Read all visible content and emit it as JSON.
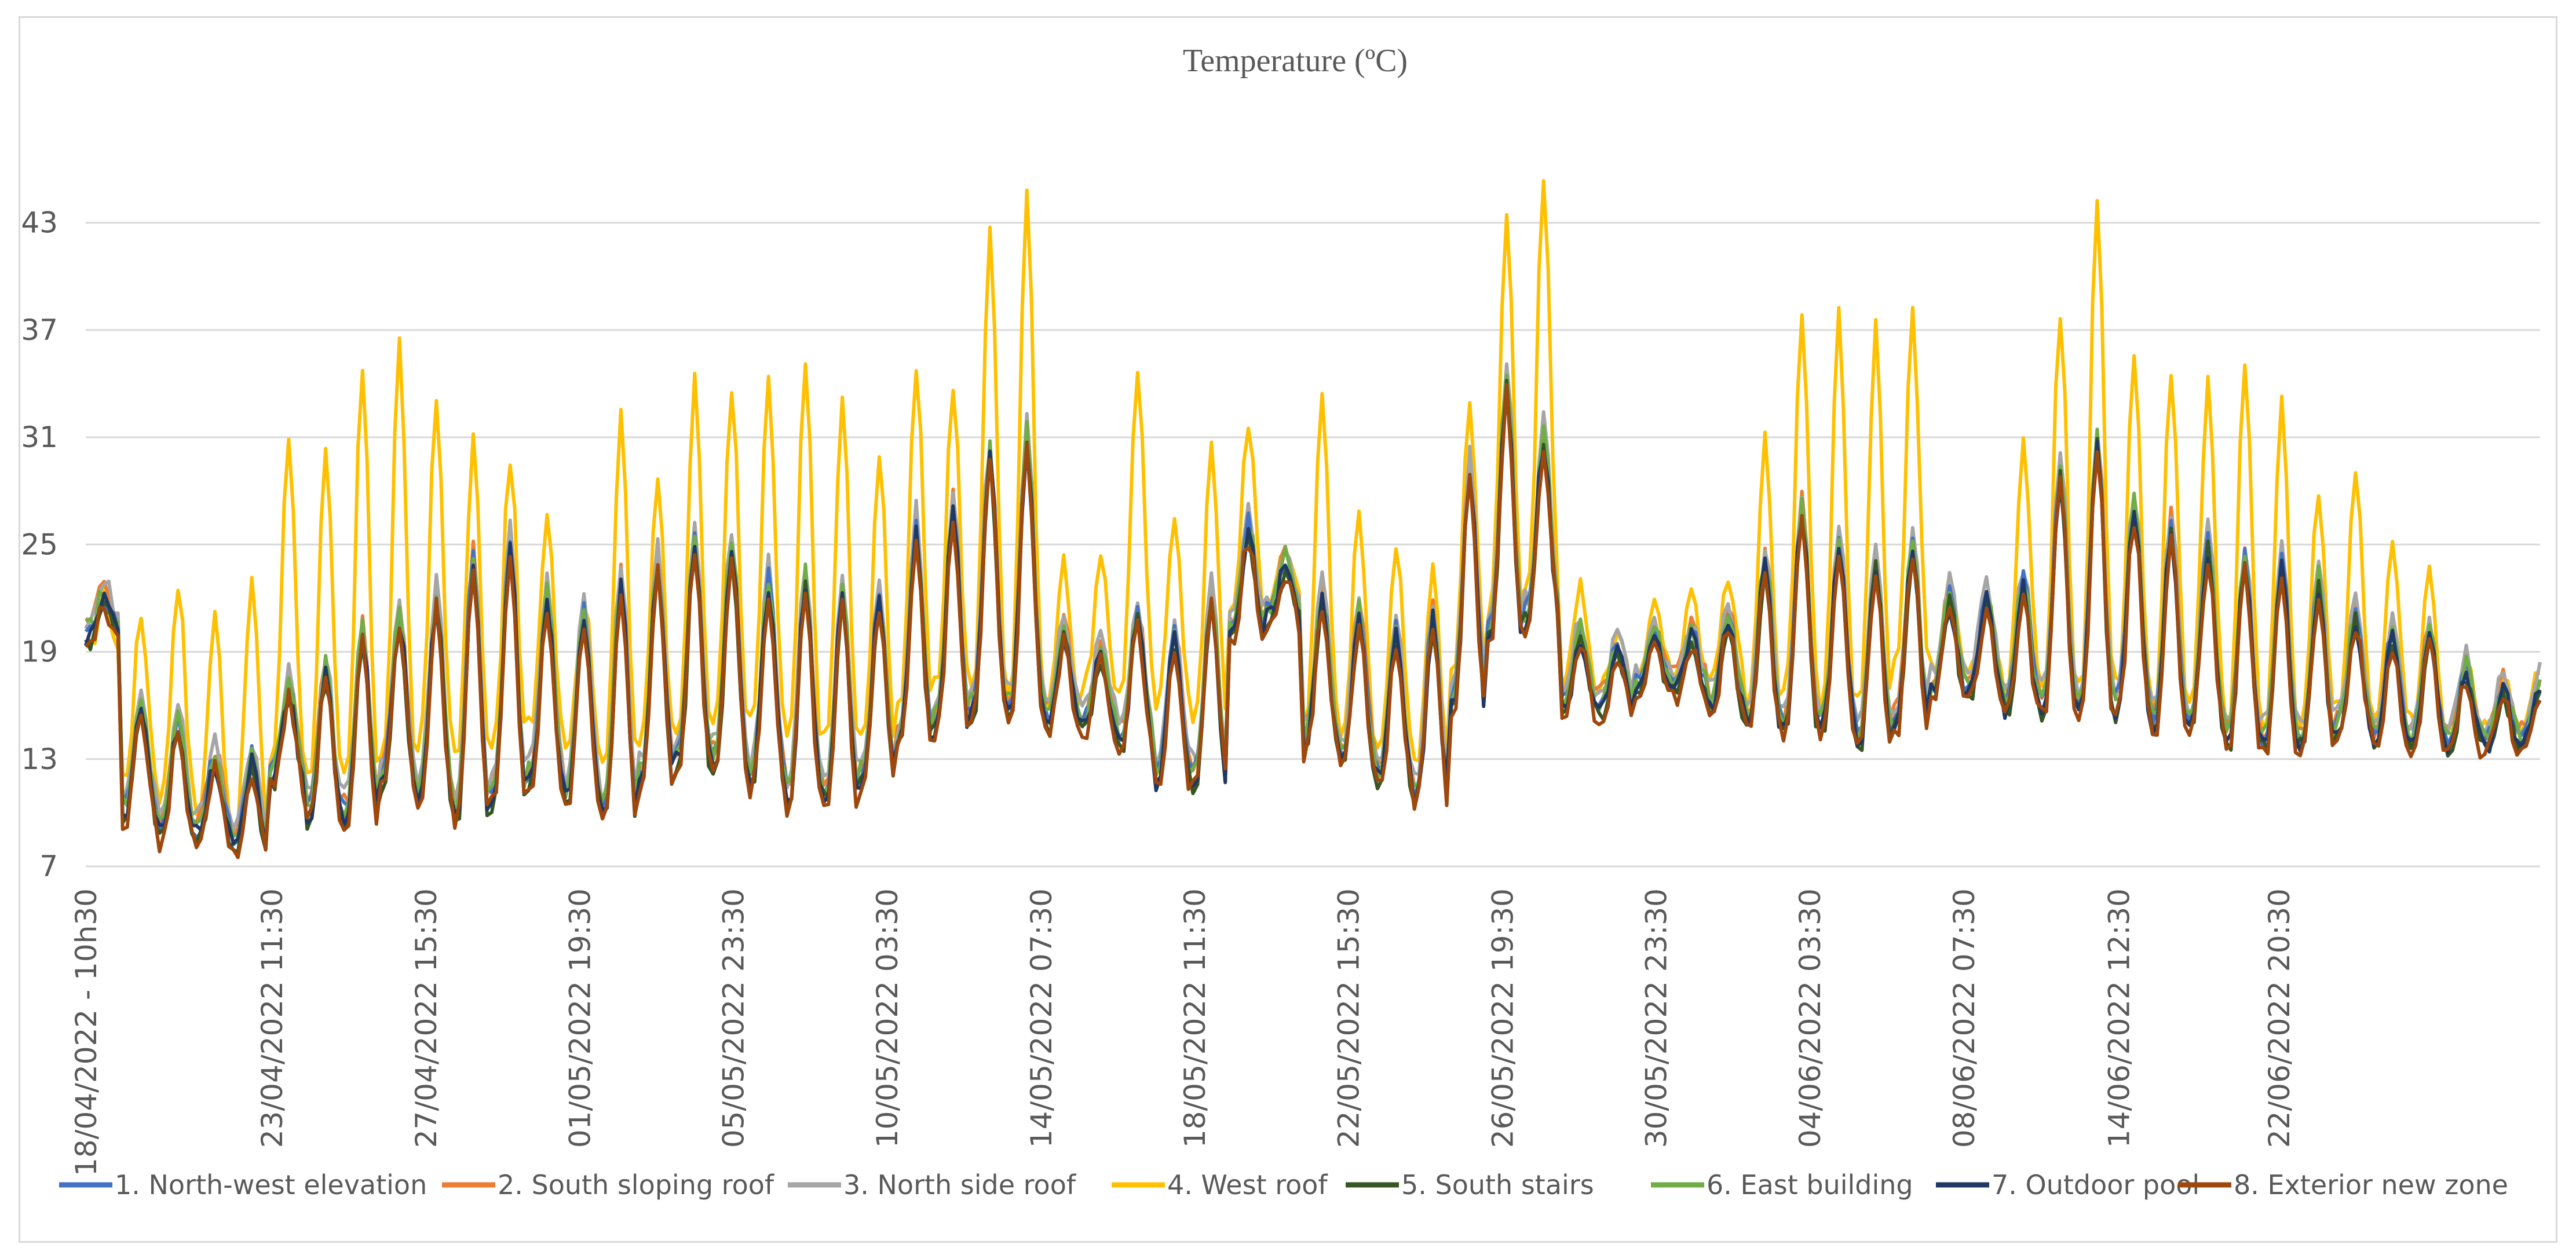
{
  "chart_data": {
    "type": "line",
    "title": "Temperature (ºC)",
    "xlabel": "",
    "ylabel": "",
    "ylim": [
      7,
      46
    ],
    "y_ticks": [
      7,
      13,
      19,
      25,
      31,
      37,
      43
    ],
    "grid": "horizontal",
    "legend_position": "bottom",
    "x_range_days": [
      0,
      66.5
    ],
    "x_ticks": [
      {
        "label": "18/04/2022 - 10h30",
        "day": 0.0
      },
      {
        "label": "23/04/2022 11:30",
        "day": 5.04
      },
      {
        "label": "27/04/2022 15:30",
        "day": 9.21
      },
      {
        "label": "01/05/2022 19:30",
        "day": 13.38
      },
      {
        "label": "05/05/2022 23:30",
        "day": 17.54
      },
      {
        "label": "10/05/2022 03:30",
        "day": 21.71
      },
      {
        "label": "14/05/2022 07:30",
        "day": 25.88
      },
      {
        "label": "18/05/2022 11:30",
        "day": 30.04
      },
      {
        "label": "22/05/2022 15:30",
        "day": 34.21
      },
      {
        "label": "26/05/2022 19:30",
        "day": 38.38
      },
      {
        "label": "30/05/2022 23:30",
        "day": 42.54
      },
      {
        "label": "04/06/2022 03:30",
        "day": 46.71
      },
      {
        "label": "08/06/2022 07:30",
        "day": 50.88
      },
      {
        "label": "14/06/2022 12:30",
        "day": 55.08
      },
      {
        "label": "22/06/2022 20:30",
        "day": 59.42
      }
    ],
    "x_axis_note": "tick labels are unevenly spaced dates; series sampled in day units relative to start",
    "daily_series": {
      "days": [
        0,
        1,
        2,
        3,
        4,
        5,
        6,
        7,
        8,
        9,
        10,
        11,
        12,
        13,
        14,
        15,
        16,
        17,
        18,
        19,
        20,
        21,
        22,
        23,
        24,
        25,
        26,
        27,
        28,
        29,
        30,
        31,
        32,
        33,
        34,
        35,
        36,
        37,
        38,
        39,
        40,
        41,
        42,
        43,
        44,
        45,
        46,
        47,
        48,
        49,
        50,
        51,
        52,
        53,
        54,
        55,
        56,
        57,
        58,
        59,
        60,
        61,
        62,
        63,
        64,
        65,
        66
      ],
      "west_roof_daily_max": [
        22,
        21,
        23,
        21,
        23,
        31,
        30,
        35,
        36,
        33,
        31,
        30,
        27,
        22,
        32,
        29,
        34,
        34,
        34,
        35,
        33,
        30,
        35,
        34,
        43,
        45,
        24,
        24,
        35,
        27,
        31,
        32,
        25,
        34,
        27,
        25,
        24,
        33,
        44,
        45,
        23,
        20,
        22,
        23,
        23,
        31,
        38,
        38,
        37,
        38,
        23,
        22,
        31,
        38,
        44,
        35,
        35,
        34,
        35,
        33,
        28,
        29,
        25,
        24,
        19,
        18,
        18
      ],
      "west_roof_daily_min": [
        19,
        12,
        11,
        10,
        9,
        13,
        12,
        12,
        13,
        14,
        13,
        14,
        15,
        14,
        13,
        14,
        15,
        15,
        15,
        14,
        14,
        14,
        16,
        17,
        17,
        17,
        16,
        17,
        17,
        16,
        15,
        21,
        22,
        15,
        14,
        14,
        13,
        18,
        21,
        22,
        17,
        17,
        18,
        18,
        18,
        16,
        17,
        16,
        16,
        18,
        18,
        18,
        17,
        17,
        17,
        17,
        16,
        16,
        15,
        15,
        15,
        16,
        15,
        15,
        15,
        15,
        15
      ],
      "others_daily_max": [
        22,
        16,
        15,
        13,
        13,
        17,
        18,
        20,
        21,
        22,
        24,
        25,
        22,
        21,
        23,
        24,
        25,
        25,
        23,
        23,
        22,
        22,
        26,
        27,
        30,
        31,
        20,
        19,
        21,
        20,
        22,
        26,
        24,
        22,
        21,
        20,
        21,
        29,
        34,
        31,
        20,
        19,
        20,
        20,
        21,
        24,
        27,
        25,
        24,
        25,
        22,
        22,
        23,
        29,
        31,
        27,
        26,
        25,
        24,
        24,
        23,
        21,
        20,
        20,
        18,
        17,
        17
      ],
      "others_daily_min": [
        20,
        10,
        9,
        9,
        8,
        12,
        10,
        10,
        12,
        11,
        10,
        11,
        12,
        11,
        10,
        12,
        13,
        13,
        12,
        11,
        11,
        12,
        14,
        15,
        16,
        16,
        15,
        15,
        14,
        12,
        12,
        20,
        21,
        14,
        13,
        12,
        11,
        16,
        20,
        21,
        16,
        16,
        17,
        17,
        16,
        15,
        15,
        15,
        14,
        15,
        17,
        17,
        16,
        16,
        16,
        16,
        15,
        15,
        14,
        14,
        14,
        15,
        14,
        14,
        14,
        14,
        14
      ]
    },
    "series": [
      {
        "name": "1. North-west elevation",
        "color": "#4472c4",
        "offset": 0.2
      },
      {
        "name": "2. South sloping roof",
        "color": "#ed7d31",
        "offset": 0.6
      },
      {
        "name": "3. North side roof",
        "color": "#a5a5a5",
        "offset": 0.9
      },
      {
        "name": "4. West roof",
        "color": "#ffc000",
        "offset": 0.0
      },
      {
        "name": "5. South stairs",
        "color": "#375623",
        "offset": -0.4
      },
      {
        "name": "6. East building",
        "color": "#70ad47",
        "offset": 0.3
      },
      {
        "name": "7. Outdoor pool",
        "color": "#203864",
        "offset": -0.2
      },
      {
        "name": "8. Exterior new zone",
        "color": "#9e480e",
        "offset": -0.6
      }
    ]
  }
}
